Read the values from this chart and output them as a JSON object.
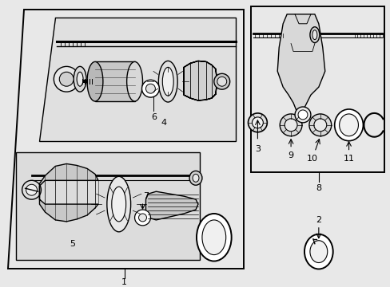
{
  "bg": "#e8e8e8",
  "lc": "#000000",
  "fig_width": 4.89,
  "fig_height": 3.6,
  "dpi": 100
}
